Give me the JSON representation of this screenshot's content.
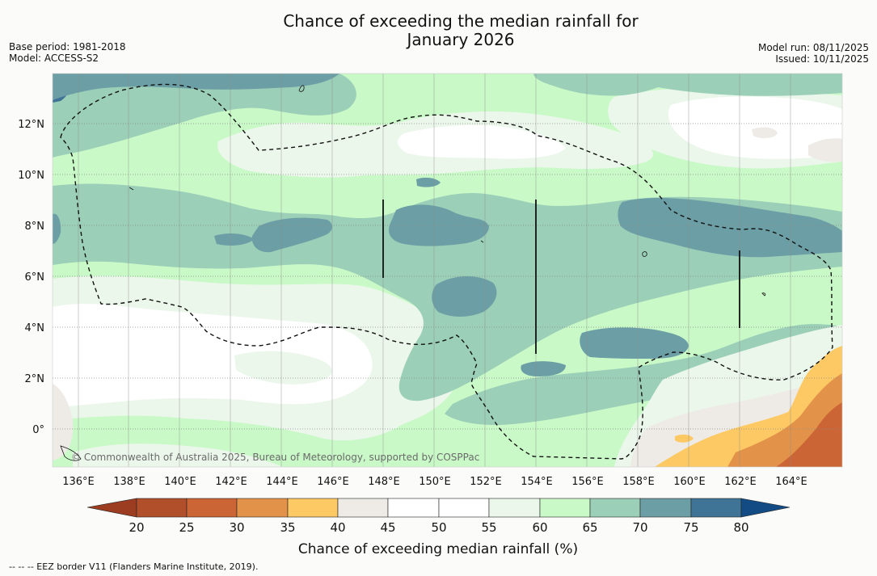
{
  "title": {
    "line1": "Chance of exceeding the median rainfall for",
    "line2": "January 2026"
  },
  "meta": {
    "base_period": "Base period: 1981-2018",
    "model": "Model: ACCESS-S2",
    "model_run": "Model run: 08/11/2025",
    "issued": "Issued: 10/11/2025"
  },
  "map": {
    "lat_labels": [
      "12°N",
      "10°N",
      "8°N",
      "6°N",
      "4°N",
      "2°N",
      "0°"
    ],
    "lon_labels": [
      "136°E",
      "138°E",
      "140°E",
      "142°E",
      "144°E",
      "146°E",
      "148°E",
      "150°E",
      "152°E",
      "154°E",
      "156°E",
      "158°E",
      "160°E",
      "162°E",
      "164°E"
    ],
    "copyright": "© Commonwealth of Australia 2025, Bureau of Meteorology, supported by COSPPac",
    "colors": {
      "c20": "#9c3d22",
      "c25": "#b14f2b",
      "c30": "#cb6535",
      "c35": "#e39349",
      "c40": "#fdc964",
      "c45": "#eeebe6",
      "c50": "#ffffff",
      "c55": "#ffffff",
      "c60": "#ecf7ec",
      "c65": "#caf9c8",
      "c70": "#9bcfb7",
      "c75": "#6c9fa5",
      "c80": "#3f7496",
      "c85": "#134c85"
    }
  },
  "colorbar": {
    "ticks": [
      "20",
      "25",
      "30",
      "35",
      "40",
      "45",
      "50",
      "55",
      "60",
      "65",
      "70",
      "75",
      "80"
    ],
    "title": "Chance of exceeding median rainfall (%)"
  },
  "footer": {
    "legend": "--  --  -- EEZ border V11 (Flanders Marine Institute, 2019)."
  }
}
